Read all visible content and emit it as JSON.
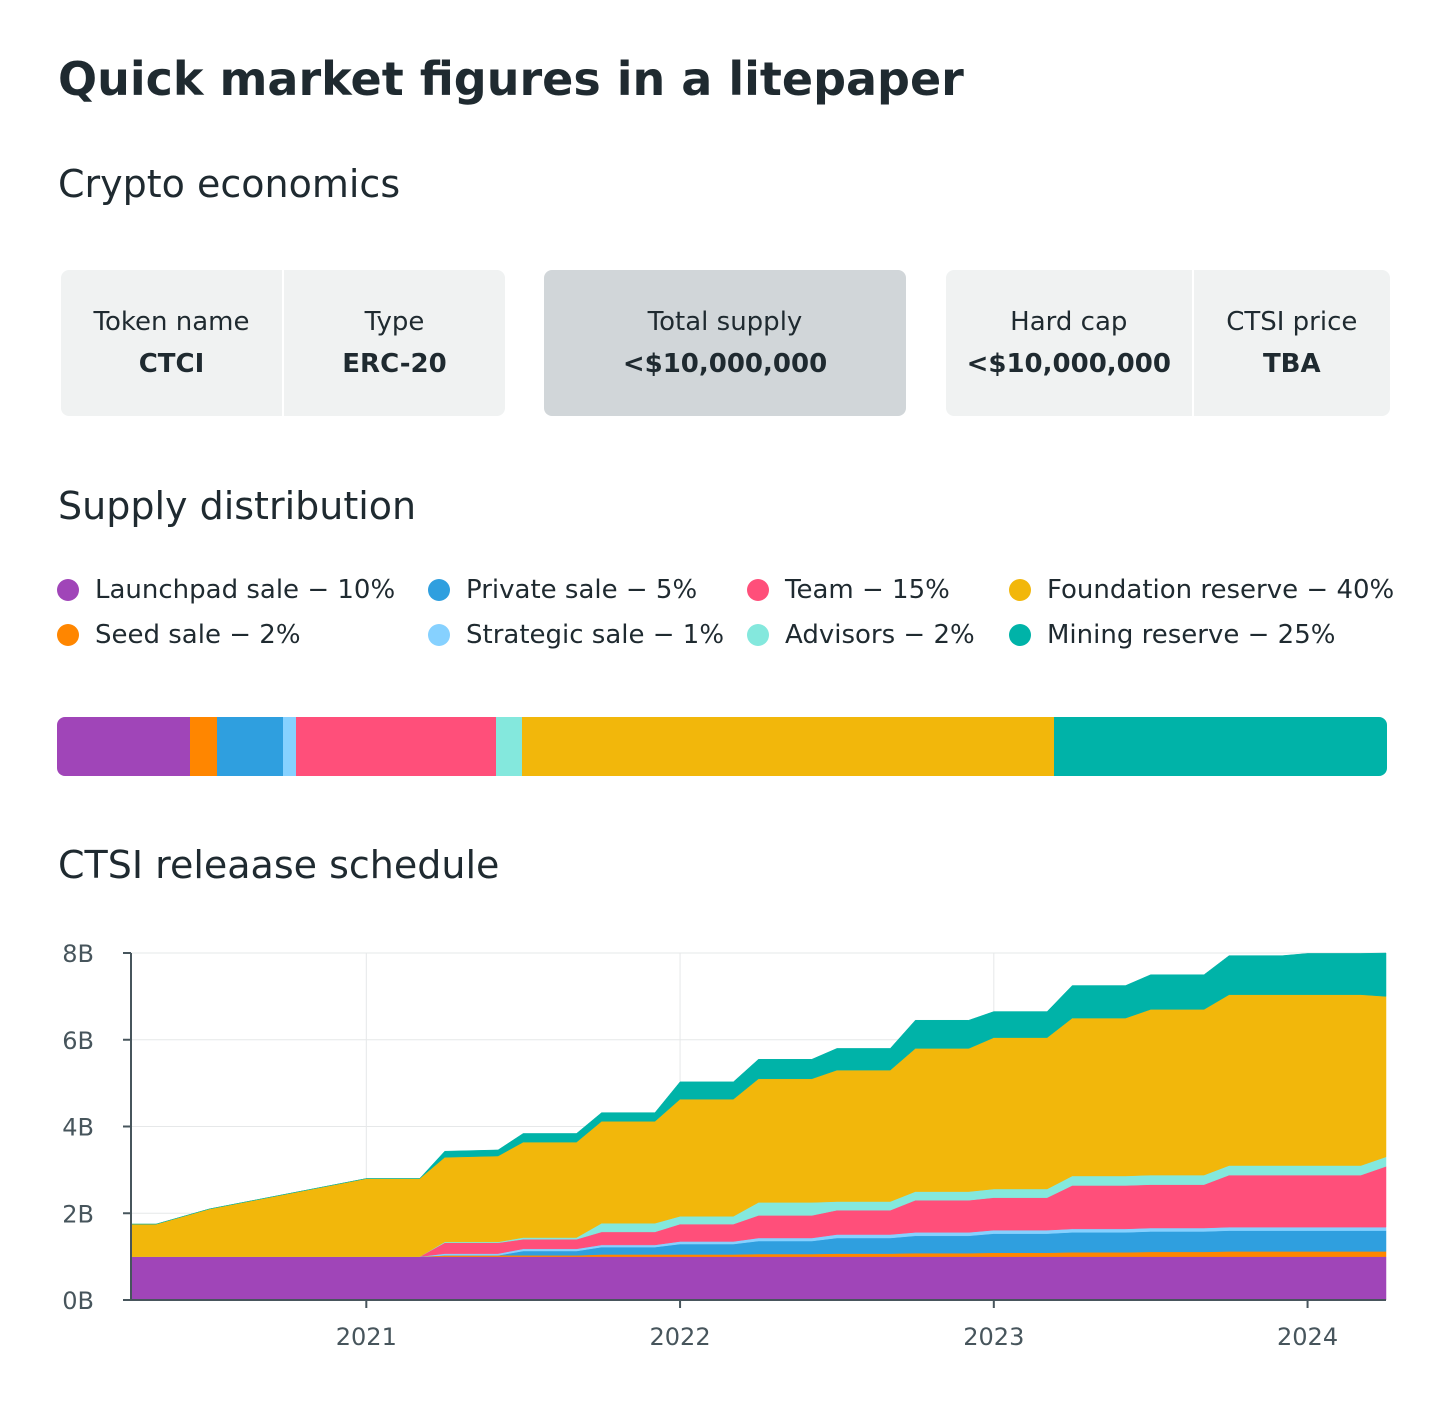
{
  "title": "Quick market figures in a litepaper",
  "sections": {
    "economics": "Crypto economics",
    "supply": "Supply distribution",
    "release": "CTSI releaase schedule"
  },
  "cards": [
    {
      "label": "Token name",
      "value": "CTCI"
    },
    {
      "label": "Type",
      "value": "ERC-20"
    },
    {
      "label": "Total supply",
      "value": "<$10,000,000"
    },
    {
      "label": "Hard cap",
      "value": "<$10,000,000"
    },
    {
      "label": "CTSI price",
      "value": "TBA"
    }
  ],
  "legend": [
    {
      "label": "Launchpad sale − 10%",
      "color": "#a045b8"
    },
    {
      "label": "Private sale − 5%",
      "color": "#2f9fdf"
    },
    {
      "label": "Team − 15%",
      "color": "#ff4f7a"
    },
    {
      "label": "Foundation reserve − 40%",
      "color": "#f2b70b"
    },
    {
      "label": "Seed sale − 2%",
      "color": "#ff8600"
    },
    {
      "label": "Strategic sale − 1%",
      "color": "#86d1ff"
    },
    {
      "label": "Advisors − 2%",
      "color": "#84e8dd"
    },
    {
      "label": "Mining reserve − 25%",
      "color": "#00b3a8"
    }
  ],
  "distribution": [
    {
      "name": "Launchpad sale",
      "percent": 10,
      "color": "#a045b8"
    },
    {
      "name": "Seed sale",
      "percent": 2,
      "color": "#ff8600"
    },
    {
      "name": "Private sale",
      "percent": 5,
      "color": "#2f9fdf"
    },
    {
      "name": "Strategic sale",
      "percent": 1,
      "color": "#86d1ff"
    },
    {
      "name": "Team",
      "percent": 15,
      "color": "#ff4f7a"
    },
    {
      "name": "Advisors",
      "percent": 2,
      "color": "#84e8dd"
    },
    {
      "name": "Foundation reserve",
      "percent": 40,
      "color": "#f2b70b"
    },
    {
      "name": "Mining reserve",
      "percent": 25,
      "color": "#00b3a8"
    }
  ],
  "chart_data": {
    "type": "area",
    "stacked": true,
    "title": "CTSI releaase schedule",
    "xlabel": "",
    "ylabel": "",
    "x": [
      2020.33,
      2020.5,
      2020.75,
      2021.0,
      2021.17,
      2021.25,
      2021.42,
      2021.5,
      2021.67,
      2021.75,
      2021.92,
      2022.0,
      2022.17,
      2022.25,
      2022.42,
      2022.5,
      2022.67,
      2022.75,
      2022.92,
      2023.0,
      2023.17,
      2023.25,
      2023.42,
      2023.5,
      2023.67,
      2023.75,
      2023.92,
      2024.0,
      2024.17,
      2024.25
    ],
    "xlim": [
      2020.25,
      2024.25
    ],
    "x_ticks": [
      "2021",
      "2022",
      "2023",
      "2024"
    ],
    "x_tick_values": [
      2021,
      2022,
      2023,
      2024
    ],
    "ylim": [
      0,
      8
    ],
    "y_ticks": [
      "0B",
      "2B",
      "4B",
      "6B",
      "8B"
    ],
    "y_tick_values": [
      0,
      2,
      4,
      6,
      8
    ],
    "units": "billions",
    "series": [
      {
        "name": "Launchpad sale",
        "color": "#a045b8",
        "values": [
          1.0,
          1.0,
          1.0,
          1.0,
          1.0,
          1.0,
          1.0,
          1.0,
          1.0,
          1.0,
          1.0,
          1.0,
          1.0,
          1.0,
          1.0,
          1.0,
          1.0,
          1.0,
          1.0,
          1.0,
          1.0,
          1.0,
          1.0,
          1.0,
          1.0,
          1.0,
          1.0,
          1.0,
          1.0,
          1.0
        ]
      },
      {
        "name": "Seed sale",
        "color": "#ff8600",
        "values": [
          0,
          0,
          0,
          0,
          0,
          0.03,
          0.03,
          0.03,
          0.03,
          0.05,
          0.05,
          0.05,
          0.05,
          0.06,
          0.06,
          0.07,
          0.07,
          0.08,
          0.08,
          0.09,
          0.09,
          0.1,
          0.1,
          0.11,
          0.11,
          0.12,
          0.12,
          0.12,
          0.12,
          0.12
        ]
      },
      {
        "name": "Private sale",
        "color": "#2f9fdf",
        "values": [
          0,
          0,
          0,
          0,
          0,
          0,
          0,
          0.1,
          0.1,
          0.17,
          0.17,
          0.24,
          0.24,
          0.3,
          0.3,
          0.36,
          0.36,
          0.4,
          0.4,
          0.44,
          0.44,
          0.46,
          0.46,
          0.47,
          0.47,
          0.48,
          0.48,
          0.48,
          0.48,
          0.48
        ]
      },
      {
        "name": "Strategic sale",
        "color": "#86d1ff",
        "values": [
          0,
          0,
          0,
          0,
          0,
          0.04,
          0.04,
          0.05,
          0.05,
          0.05,
          0.05,
          0.06,
          0.06,
          0.07,
          0.07,
          0.08,
          0.08,
          0.08,
          0.08,
          0.08,
          0.08,
          0.08,
          0.08,
          0.08,
          0.08,
          0.08,
          0.08,
          0.08,
          0.08,
          0.08
        ]
      },
      {
        "name": "Team",
        "color": "#ff4f7a",
        "values": [
          0,
          0,
          0,
          0,
          0,
          0.25,
          0.25,
          0.22,
          0.22,
          0.3,
          0.3,
          0.4,
          0.4,
          0.52,
          0.52,
          0.56,
          0.56,
          0.74,
          0.74,
          0.75,
          0.75,
          1.0,
          1.0,
          1.0,
          1.0,
          1.2,
          1.2,
          1.2,
          1.2,
          1.4
        ]
      },
      {
        "name": "Advisors",
        "color": "#84e8dd",
        "values": [
          0,
          0,
          0,
          0,
          0,
          0.02,
          0.02,
          0.04,
          0.04,
          0.2,
          0.2,
          0.18,
          0.18,
          0.3,
          0.3,
          0.2,
          0.2,
          0.2,
          0.2,
          0.2,
          0.2,
          0.22,
          0.22,
          0.22,
          0.22,
          0.22,
          0.22,
          0.22,
          0.22,
          0.22
        ]
      },
      {
        "name": "Foundation reserve",
        "color": "#f2b70b",
        "values": [
          0.75,
          1.1,
          1.45,
          1.8,
          1.8,
          1.95,
          1.98,
          2.2,
          2.2,
          2.35,
          2.35,
          2.7,
          2.7,
          2.85,
          2.85,
          3.03,
          3.03,
          3.3,
          3.3,
          3.49,
          3.49,
          3.64,
          3.64,
          3.82,
          3.82,
          3.94,
          3.94,
          3.94,
          3.94,
          3.7
        ]
      },
      {
        "name": "Mining reserve",
        "color": "#00b3a8",
        "values": [
          0,
          0,
          0,
          0,
          0,
          0.14,
          0.14,
          0.2,
          0.2,
          0.2,
          0.2,
          0.4,
          0.4,
          0.45,
          0.45,
          0.5,
          0.5,
          0.65,
          0.65,
          0.6,
          0.6,
          0.75,
          0.75,
          0.8,
          0.8,
          0.9,
          0.9,
          0.95,
          0.95,
          1.0
        ]
      }
    ]
  }
}
